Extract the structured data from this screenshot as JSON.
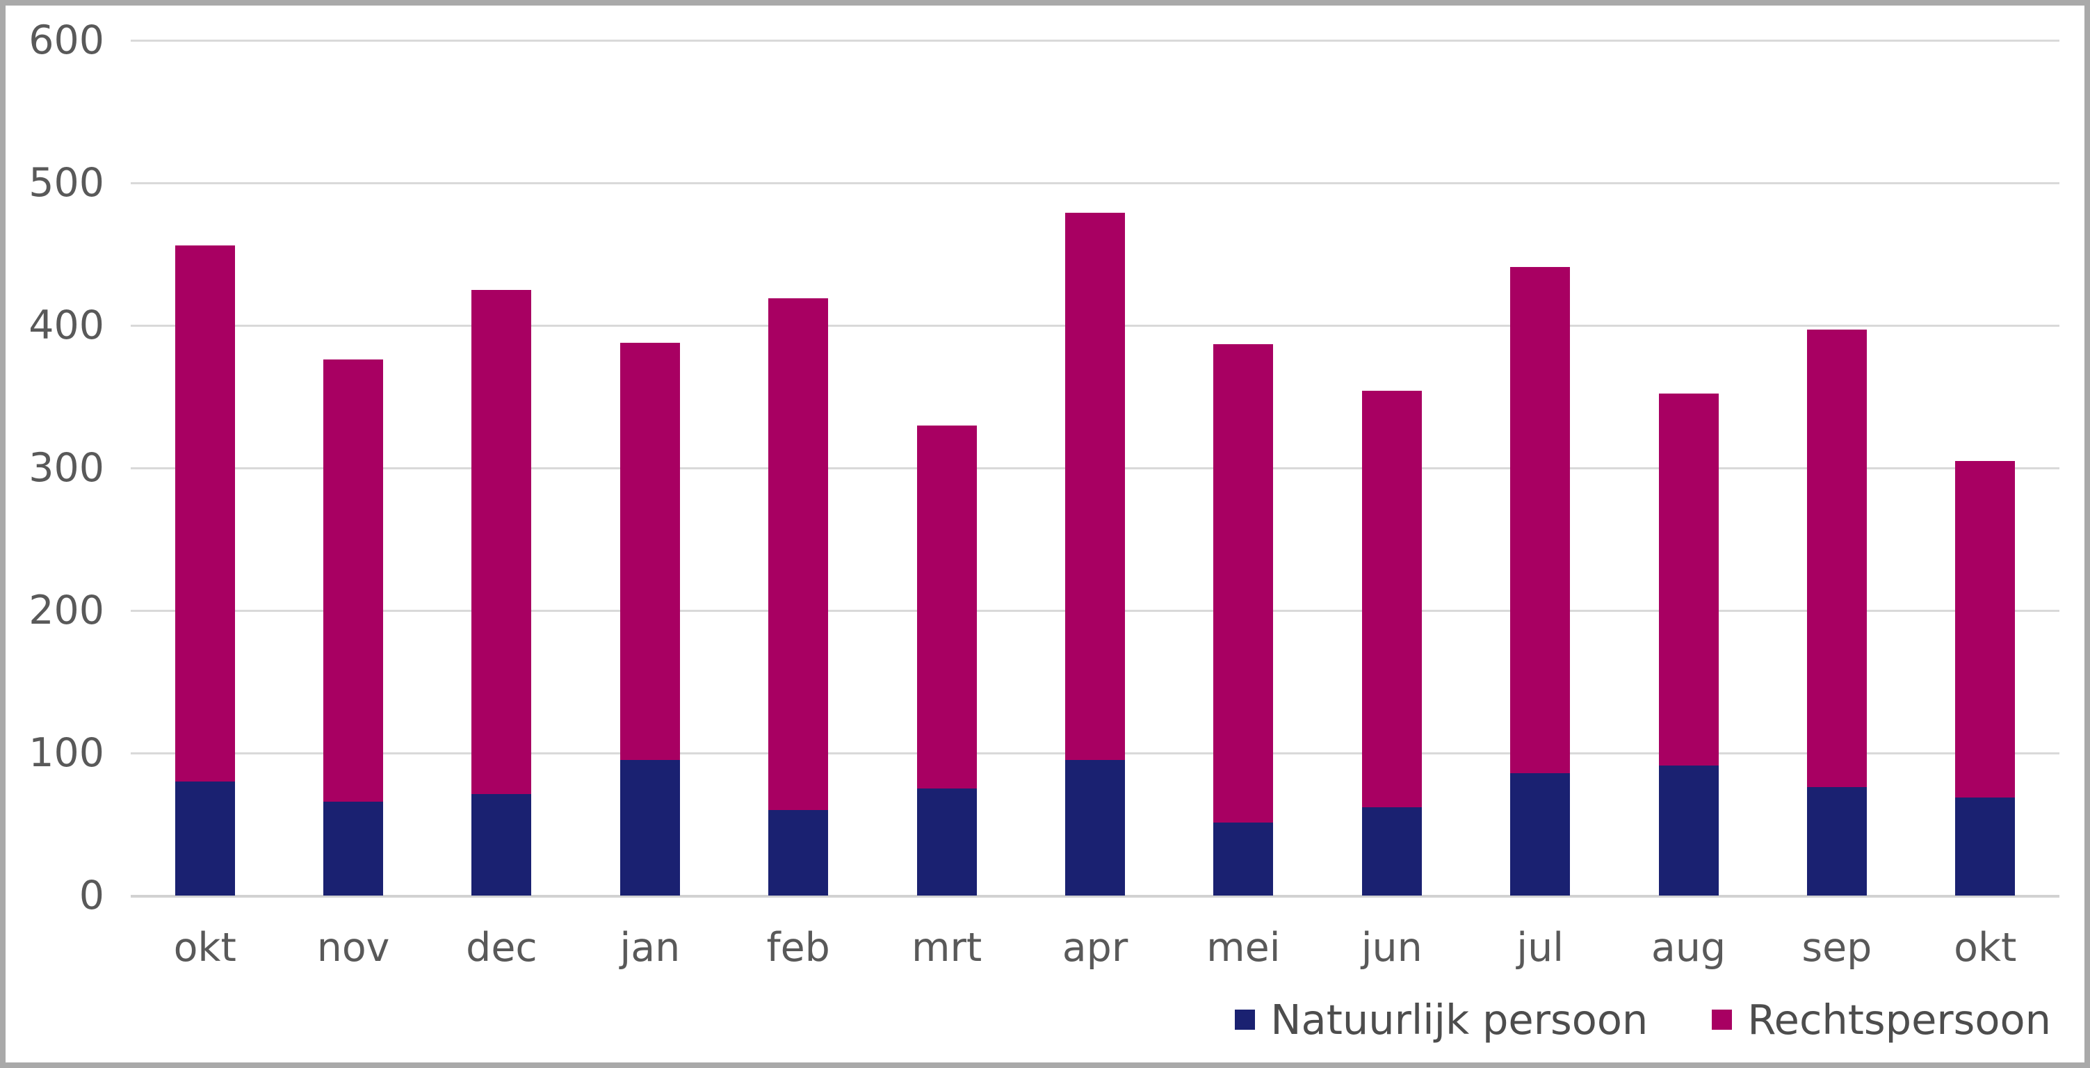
{
  "chart_data": {
    "type": "bar",
    "stacked": true,
    "title": "",
    "xlabel": "",
    "ylabel": "",
    "categories": [
      "okt",
      "nov",
      "dec",
      "jan",
      "feb",
      "mrt",
      "apr",
      "mei",
      "jun",
      "jul",
      "aug",
      "sep",
      "okt"
    ],
    "series": [
      {
        "name": "Natuurlijk persoon",
        "color": "#1A2171",
        "values": [
          80,
          66,
          71,
          95,
          60,
          75,
          95,
          51,
          62,
          86,
          91,
          76,
          69
        ]
      },
      {
        "name": "Rechtspersoon",
        "color": "#A80062",
        "values": [
          376,
          310,
          354,
          293,
          359,
          255,
          384,
          336,
          292,
          355,
          261,
          321,
          236
        ]
      }
    ],
    "totals": [
      456,
      376,
      425,
      388,
      419,
      330,
      479,
      387,
      354,
      441,
      352,
      397,
      305
    ],
    "ylim": [
      0,
      600
    ],
    "yticks": [
      0,
      100,
      200,
      300,
      400,
      500,
      600
    ],
    "grid": true,
    "gridline_color": "#D9D9D9",
    "axis_text_color": "#595959",
    "legend_text_color": "#4D4D4D",
    "legend_position": "bottom-right"
  }
}
